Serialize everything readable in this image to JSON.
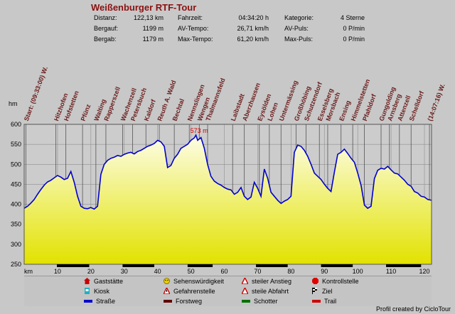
{
  "title": "Weißenburger RTF-Tour",
  "stats": [
    {
      "label": "Distanz:",
      "value": "122,13 km"
    },
    {
      "label": "Bergauf:",
      "value": "1199 m"
    },
    {
      "label": "Bergab:",
      "value": "1179 m"
    },
    {
      "label": "Fahrzeit:",
      "value": "04:34:20 h"
    },
    {
      "label": "AV-Tempo:",
      "value": "26,71 km/h"
    },
    {
      "label": "Max-Tempo:",
      "value": "61,20 km/h"
    },
    {
      "label": "Kategorie:",
      "value": "4 Sterne"
    },
    {
      "label": "AV-Puls:",
      "value": "0 P/min"
    },
    {
      "label": "Max-Puls:",
      "value": "0 P/min"
    }
  ],
  "chart_data": {
    "type": "area",
    "xlabel": "km",
    "ylabel": "hm",
    "xlim": [
      0,
      122.13
    ],
    "ylim": [
      250,
      600
    ],
    "x_ticks": [
      10,
      20,
      30,
      40,
      50,
      60,
      70,
      80,
      90,
      100,
      110,
      120
    ],
    "y_ticks": [
      250,
      300,
      350,
      400,
      450,
      500,
      550,
      600
    ],
    "grid": true,
    "max_label": "573 m",
    "max_point": {
      "x": 51.5,
      "y": 573
    },
    "colors": {
      "line": "#0000cc",
      "fill_top": "#fdfde6",
      "fill_bottom": "#e2e200",
      "grid": "#8f8f8f",
      "waypoint_line": "#555555",
      "label": "#6a1a1a",
      "max_label": "#cc0000",
      "road_bar": "#000000"
    },
    "series": [
      {
        "x": [
          0,
          1,
          2,
          3,
          4,
          5,
          6,
          7,
          8,
          9,
          10,
          11,
          12,
          13,
          14,
          15,
          16,
          17,
          18,
          19,
          20,
          21,
          22,
          23,
          24,
          25,
          26,
          27,
          28,
          29,
          30,
          31,
          32,
          33,
          34,
          35,
          36,
          37,
          38,
          39,
          40,
          41,
          42,
          43,
          44,
          45,
          46,
          47,
          48,
          49,
          50,
          51,
          51.5,
          52,
          53,
          54,
          55,
          56,
          57,
          58,
          59,
          60,
          61,
          62,
          63,
          64,
          65,
          66,
          67,
          68,
          69,
          70,
          71,
          72,
          73,
          74,
          75,
          76,
          77,
          78,
          79,
          80,
          81,
          82,
          83,
          84,
          85,
          86,
          87,
          88,
          89,
          90,
          91,
          92,
          93,
          94,
          95,
          96,
          97,
          98,
          99,
          100,
          101,
          102,
          103,
          104,
          105,
          106,
          107,
          108,
          109,
          110,
          111,
          112,
          113,
          114,
          115,
          116,
          117,
          118,
          119,
          120,
          121,
          122.13
        ],
        "y": [
          390,
          395,
          403,
          412,
          425,
          437,
          448,
          456,
          460,
          466,
          472,
          468,
          462,
          465,
          482,
          455,
          420,
          395,
          390,
          389,
          392,
          388,
          395,
          475,
          500,
          510,
          515,
          518,
          522,
          520,
          525,
          528,
          530,
          526,
          532,
          535,
          540,
          545,
          548,
          552,
          560,
          556,
          545,
          492,
          497,
          515,
          525,
          540,
          545,
          550,
          560,
          566,
          573,
          560,
          567,
          540,
          500,
          470,
          458,
          452,
          448,
          442,
          438,
          436,
          425,
          430,
          442,
          420,
          412,
          418,
          455,
          440,
          420,
          488,
          465,
          430,
          420,
          410,
          402,
          408,
          412,
          420,
          530,
          548,
          545,
          535,
          520,
          500,
          478,
          470,
          462,
          450,
          440,
          432,
          480,
          525,
          530,
          538,
          527,
          515,
          505,
          478,
          447,
          398,
          390,
          395,
          464,
          485,
          490,
          488,
          495,
          486,
          478,
          476,
          468,
          460,
          450,
          445,
          432,
          428,
          420,
          418,
          412,
          410
        ]
      }
    ],
    "waypoints": [
      {
        "x": 0.5,
        "label": "Start: (09:33:00) W."
      },
      {
        "x": 9.5,
        "label": "Hitzhofen"
      },
      {
        "x": 12.5,
        "label": "Hofstetten"
      },
      {
        "x": 17.5,
        "label": "Pfünz"
      },
      {
        "x": 21.5,
        "label": "Walting"
      },
      {
        "x": 24.5,
        "label": "Rapperszell"
      },
      {
        "x": 29.5,
        "label": "Wachenzell"
      },
      {
        "x": 32.5,
        "label": "Petersbuch"
      },
      {
        "x": 36.5,
        "label": "Kaldorf"
      },
      {
        "x": 40.5,
        "label": "Reuth A. Wald"
      },
      {
        "x": 45,
        "label": "Bechtal"
      },
      {
        "x": 49.5,
        "label": "Nennslingen"
      },
      {
        "x": 52.5,
        "label": "Wengen"
      },
      {
        "x": 55,
        "label": "Thalmannsfeld"
      },
      {
        "x": 62.5,
        "label": "Laibstadt"
      },
      {
        "x": 66,
        "label": "Aberzhausen"
      },
      {
        "x": 70.5,
        "label": "Eysölden"
      },
      {
        "x": 73.5,
        "label": "Lohen"
      },
      {
        "x": 77,
        "label": "Untermässing"
      },
      {
        "x": 81.5,
        "label": "Großhöbing"
      },
      {
        "x": 84.5,
        "label": "Schutzendorf"
      },
      {
        "x": 88.5,
        "label": "Esselsberg"
      },
      {
        "x": 91,
        "label": "Morsbach"
      },
      {
        "x": 95,
        "label": "Ensing"
      },
      {
        "x": 98.5,
        "label": "Himmelstetten"
      },
      {
        "x": 102,
        "label": "Pfahldorf"
      },
      {
        "x": 107,
        "label": "Gungolding"
      },
      {
        "x": 109.5,
        "label": "Arnsberg"
      },
      {
        "x": 112.5,
        "label": "Attenzell"
      },
      {
        "x": 116,
        "label": "Schelldorf"
      },
      {
        "x": 121.5,
        "label": "(14:07:16) W."
      }
    ],
    "road_segments": [
      [
        9.8,
        19.5
      ],
      [
        29.5,
        39
      ],
      [
        49,
        56.5
      ],
      [
        69.5,
        79
      ],
      [
        89,
        98.5
      ],
      [
        108.5,
        119
      ]
    ]
  },
  "legend": [
    {
      "icon": "gaststaette-icon",
      "label": "Gaststätte",
      "color": "#c80000"
    },
    {
      "icon": "sehenswuerdigkeit-icon",
      "label": "Sehenswürdigkeit",
      "color": "#e8d000"
    },
    {
      "icon": "steiler-anstieg-icon",
      "label": "steiler Anstieg",
      "color": "#d00000"
    },
    {
      "icon": "kontrollstelle-icon",
      "label": "Kontrollstelle",
      "color": "#e00000"
    },
    {
      "icon": "kiosk-icon",
      "label": "Kiosk",
      "color": "#20b0c0"
    },
    {
      "icon": "gefahrenstelle-icon",
      "label": "Gefahrenstelle",
      "color": "#d00000"
    },
    {
      "icon": "steile-abfahrt-icon",
      "label": "steile Abfahrt",
      "color": "#d00000"
    },
    {
      "icon": "ziel-icon",
      "label": "Ziel",
      "color": "#000000"
    },
    {
      "icon": "strasse-icon",
      "label": "Straße",
      "color": "#0000cc"
    },
    {
      "icon": "forstweg-icon",
      "label": "Forstweg",
      "color": "#600000"
    },
    {
      "icon": "schotter-icon",
      "label": "Schotter",
      "color": "#007000"
    },
    {
      "icon": "trail-icon",
      "label": "Trail",
      "color": "#cc0000"
    }
  ],
  "credit": "Profil created by CicloTour"
}
